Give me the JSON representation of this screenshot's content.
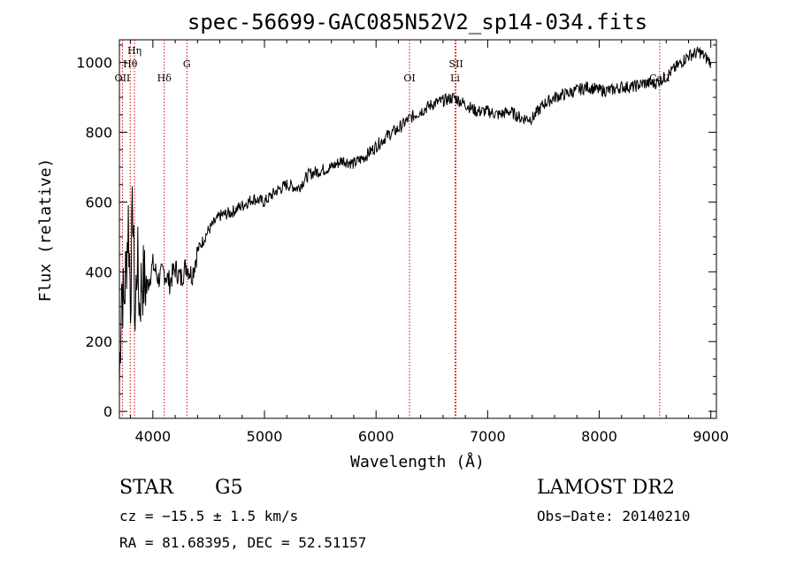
{
  "chart_data": {
    "type": "line",
    "title": "spec-56699-GAC085N52V2_sp14-034.fits",
    "xlabel": "Wavelength (Å)",
    "ylabel": "Flux (relative)",
    "xlim": [
      3700,
      9050
    ],
    "ylim": [
      -20,
      1065
    ],
    "xticks": [
      4000,
      5000,
      6000,
      7000,
      8000,
      9000
    ],
    "yticks": [
      0,
      200,
      400,
      600,
      800,
      1000
    ],
    "grid": false,
    "line_color": "#000000",
    "marker_color": "#cc0000",
    "series": [
      {
        "x": [
          3700,
          3720,
          3740,
          3760,
          3780,
          3800,
          3820,
          3840,
          3860,
          3880,
          3900,
          3950,
          4000,
          4050,
          4100,
          4150,
          4200,
          4250,
          4300,
          4350,
          4400,
          4500,
          4600,
          4700,
          4800,
          4900,
          5000,
          5100,
          5200,
          5300,
          5400,
          5500,
          5600,
          5700,
          5800,
          5900,
          6000,
          6100,
          6200,
          6300,
          6400,
          6500,
          6600,
          6700,
          6800,
          6900,
          7000,
          7100,
          7200,
          7300,
          7400,
          7500,
          7600,
          7700,
          7800,
          7900,
          8000,
          8100,
          8200,
          8300,
          8400,
          8500,
          8600,
          8700,
          8800,
          8900,
          9000
        ],
        "y": [
          80,
          380,
          300,
          420,
          550,
          330,
          600,
          250,
          450,
          300,
          380,
          360,
          420,
          380,
          400,
          370,
          410,
          380,
          420,
          390,
          460,
          520,
          560,
          570,
          590,
          610,
          600,
          630,
          650,
          640,
          680,
          690,
          700,
          720,
          710,
          730,
          760,
          790,
          810,
          840,
          860,
          880,
          890,
          900,
          880,
          860,
          860,
          850,
          860,
          840,
          840,
          880,
          900,
          910,
          920,
          930,
          920,
          920,
          930,
          930,
          940,
          940,
          960,
          990,
          1020,
          1030,
          1000
        ]
      }
    ],
    "line_markers": [
      {
        "label": "OII",
        "x": 3727
      },
      {
        "label": "Hθ",
        "x": 3797
      },
      {
        "label": "Hη",
        "x": 3835
      },
      {
        "label": "Hδ",
        "x": 4102
      },
      {
        "label": "G",
        "x": 4305
      },
      {
        "label": "OI",
        "x": 6300
      },
      {
        "label": "SII",
        "x": 6717
      },
      {
        "label": "Li",
        "x": 6708
      },
      {
        "label": "CaII",
        "x": 8542
      }
    ]
  },
  "info": {
    "object_class": "STAR",
    "subclass": "G5",
    "survey": "LAMOST DR2",
    "redshift": "cz = −15.5 ± 1.5 km/s",
    "obs_date": "Obs−Date: 20140210",
    "coords": "RA =  81.68395, DEC =  52.51157"
  }
}
